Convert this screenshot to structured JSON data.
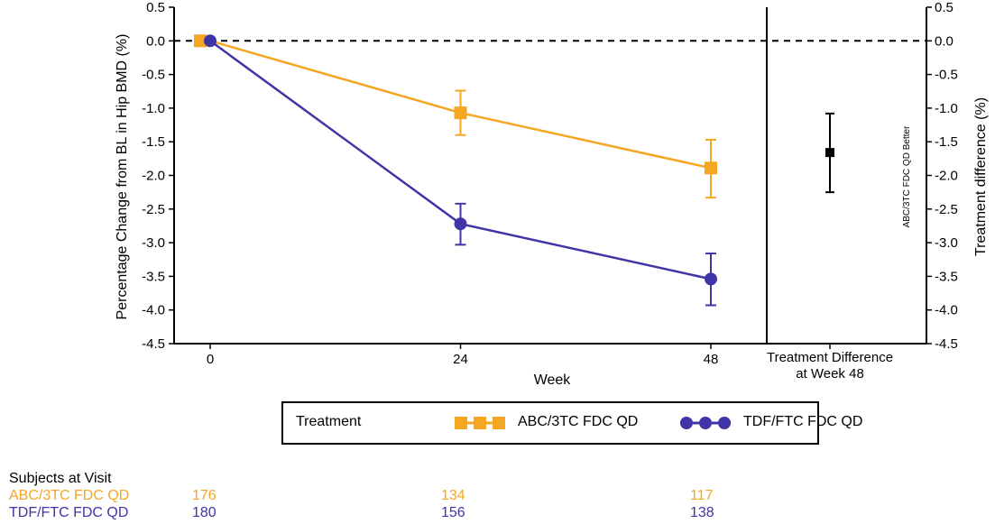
{
  "chart_data": {
    "type": "line",
    "ylabel": "Percentage Change from BL in Hip BMD (%)",
    "ylabel_right": "Treatment difference (%)",
    "xlabel": "Week",
    "x": [
      0,
      24,
      48
    ],
    "x_tick_labels": [
      "0",
      "24",
      "48"
    ],
    "ylim": [
      -4.5,
      0.5
    ],
    "y_ticks": [
      "0.5",
      "0.0",
      "-0.5",
      "-1.0",
      "-1.5",
      "-2.0",
      "-2.5",
      "-3.0",
      "-3.5",
      "-4.0",
      "-4.5"
    ],
    "reference_line": 0,
    "series": [
      {
        "name": "ABC/3TC FDC QD",
        "color": "#f5a623",
        "marker": "square",
        "values": [
          0,
          -1.07,
          -1.89
        ],
        "err_low": [
          0,
          -1.4,
          -2.33
        ],
        "err_high": [
          0,
          -0.74,
          -1.47
        ]
      },
      {
        "name": "TDF/FTC FDC QD",
        "color": "#3f35a6",
        "marker": "circle",
        "values": [
          0,
          -2.72,
          -3.54
        ],
        "err_low": [
          0,
          -3.03,
          -3.93
        ],
        "err_high": [
          0,
          -2.42,
          -3.16
        ]
      }
    ],
    "difference_panel": {
      "label_line1": "Treatment Difference",
      "label_line2": "at Week 48",
      "value": -1.66,
      "ci_low": -2.25,
      "ci_high": -1.08,
      "annotation": "ABC/3TC FDC QD Better",
      "color": "#000000"
    }
  },
  "legend": {
    "title": "Treatment",
    "entries": [
      {
        "label": "ABC/3TC FDC QD",
        "color": "#f5a623",
        "marker": "square"
      },
      {
        "label": "TDF/FTC FDC QD",
        "color": "#3f35a6",
        "marker": "circle"
      }
    ]
  },
  "subjects": {
    "title": "Subjects at Visit",
    "rows": [
      {
        "name": "ABC/3TC FDC QD",
        "color": "#f5a623",
        "counts": [
          "176",
          "134",
          "117"
        ]
      },
      {
        "name": "TDF/FTC FDC QD",
        "color": "#3f35a6",
        "counts": [
          "180",
          "156",
          "138"
        ]
      }
    ]
  }
}
